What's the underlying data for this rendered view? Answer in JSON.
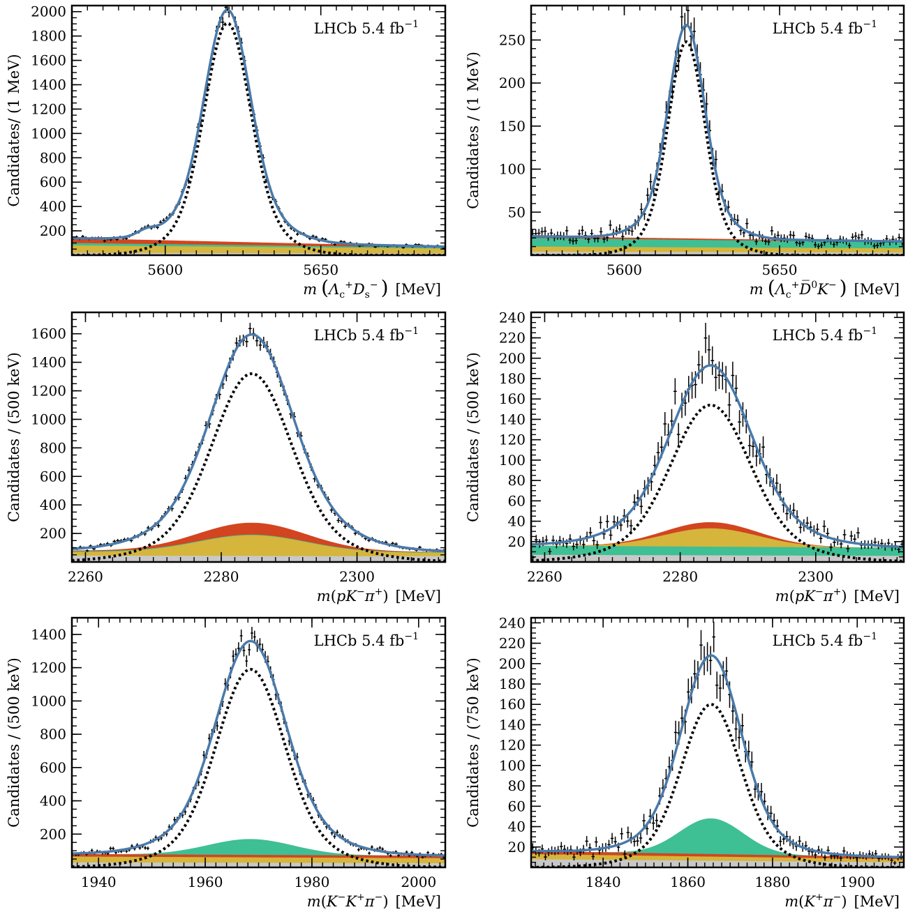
{
  "colors": {
    "total_fit": "#4a7aaa",
    "signal": "#000000",
    "bkg_red": "#d24520",
    "bkg_yellow": "#d5b53b",
    "bkg_green": "#3fbf94",
    "bkg_grey": "#c8c8c8",
    "data": "#000000"
  },
  "chart_data": [
    {
      "type": "line",
      "panel": "top-left",
      "lhcb_label": "LHCb 5.4 fb",
      "lhcb_sup": "−1",
      "ylabel": "Candidates/ (1 MeV)",
      "xlabel_prefix": "m",
      "xlabel_unit": "[MeV]",
      "xlabel_math": [
        [
          "Λ",
          ""
        ],
        [
          "c",
          "sub"
        ],
        [
          "+",
          "sup"
        ],
        [
          "D",
          ""
        ],
        [
          "s",
          "sub"
        ],
        [
          "−",
          "sup"
        ]
      ],
      "paren_style": "big",
      "xlim": [
        5570,
        5690
      ],
      "ylim": [
        0,
        2050
      ],
      "xticks": [
        5600,
        5650
      ],
      "yticks": [
        200,
        400,
        600,
        800,
        1000,
        1200,
        1400,
        1600,
        1800,
        2000
      ],
      "minor_x": 5,
      "minor_y": 50,
      "bin_width": 1,
      "peak": {
        "mean": 5620,
        "width": 7,
        "signal_amp": 1905,
        "bkg_start": 140,
        "bkg_end": 70
      },
      "bkg_layers": [
        {
          "color": "bkg_grey",
          "start": 20,
          "end": 15
        },
        {
          "color": "bkg_yellow",
          "start": 80,
          "end": 55
        },
        {
          "color": "bkg_green",
          "start": 100,
          "end": 62
        },
        {
          "color": "bkg_red",
          "start": 140,
          "end": 70
        }
      ],
      "extra_gauss": {
        "mean": 5594,
        "width": 3,
        "amp": 40
      }
    },
    {
      "type": "line",
      "panel": "top-right",
      "lhcb_label": "LHCb 5.4 fb",
      "lhcb_sup": "−1",
      "ylabel": "Candidates / (1 MeV)",
      "xlabel_prefix": "m",
      "xlabel_unit": "[MeV]",
      "xlabel_math": [
        [
          "Λ",
          ""
        ],
        [
          "c",
          "sub"
        ],
        [
          "+",
          "sup"
        ],
        [
          "D̅",
          ""
        ],
        [
          "0",
          "sup"
        ],
        [
          "K",
          ""
        ],
        [
          "−",
          "sup"
        ]
      ],
      "paren_style": "big",
      "xlim": [
        5570,
        5690
      ],
      "ylim": [
        0,
        290
      ],
      "xticks": [
        5600,
        5650
      ],
      "yticks": [
        50,
        100,
        150,
        200,
        250
      ],
      "minor_x": 5,
      "minor_y": 10,
      "bin_width": 1,
      "peak": {
        "mean": 5620,
        "width": 5.5,
        "signal_amp": 248,
        "bkg_start": 22,
        "bkg_end": 16
      },
      "bkg_layers": [
        {
          "color": "bkg_grey",
          "start": 4,
          "end": 3
        },
        {
          "color": "bkg_yellow",
          "start": 10,
          "end": 8
        },
        {
          "color": "bkg_green",
          "start": 20,
          "end": 15
        },
        {
          "color": "bkg_red",
          "start": 22,
          "end": 16
        }
      ]
    },
    {
      "type": "line",
      "panel": "middle-left",
      "lhcb_label": "LHCb 5.4 fb",
      "lhcb_sup": "−1",
      "ylabel": "Candidates / (500 keV)",
      "xlabel_prefix": "m",
      "xlabel_unit": "[MeV]",
      "xlabel_math": [
        [
          "(",
          ""
        ],
        [
          "pK",
          ""
        ],
        [
          "−",
          "sup"
        ],
        [
          "π",
          ""
        ],
        [
          "+",
          "sup"
        ],
        [
          ")",
          ""
        ]
      ],
      "paren_style": "plain",
      "xlim": [
        2258,
        2313
      ],
      "ylim": [
        0,
        1750
      ],
      "xticks": [
        2260,
        2280,
        2300
      ],
      "yticks": [
        200,
        400,
        600,
        800,
        1000,
        1200,
        1400,
        1600
      ],
      "minor_x": 2,
      "minor_y": 50,
      "bin_width": 0.5,
      "peak": {
        "mean": 2284.5,
        "width": 5.5,
        "signal_amp": 1320,
        "bkg_start": 80,
        "bkg_end": 70
      },
      "bkg_layers": [
        {
          "color": "bkg_grey",
          "start": 45,
          "end": 40,
          "peak_amp": 0,
          "peak_width": 8
        },
        {
          "color": "bkg_yellow",
          "start": 70,
          "end": 65,
          "peak_amp": 120,
          "peak_width": 8
        },
        {
          "color": "bkg_green",
          "start": 75,
          "end": 68,
          "peak_amp": 120,
          "peak_width": 8
        },
        {
          "color": "bkg_red",
          "start": 80,
          "end": 70,
          "peak_amp": 200,
          "peak_width": 8
        }
      ],
      "bkg_peak_mean": 2284.5
    },
    {
      "type": "line",
      "panel": "middle-right",
      "lhcb_label": "LHCb 5.4 fb",
      "lhcb_sup": "−1",
      "ylabel": "Candidates / (500 keV)",
      "xlabel_prefix": "m",
      "xlabel_unit": "[MeV]",
      "xlabel_math": [
        [
          "(",
          ""
        ],
        [
          "pK",
          ""
        ],
        [
          "−",
          "sup"
        ],
        [
          "π",
          ""
        ],
        [
          "+",
          "sup"
        ],
        [
          ")",
          ""
        ]
      ],
      "paren_style": "plain",
      "xlim": [
        2258,
        2313
      ],
      "ylim": [
        0,
        245
      ],
      "xticks": [
        2260,
        2280,
        2300
      ],
      "yticks": [
        20,
        40,
        60,
        80,
        100,
        120,
        140,
        160,
        180,
        200,
        220,
        240
      ],
      "minor_x": 2,
      "minor_y": 5,
      "bin_width": 0.5,
      "peak": {
        "mean": 2284.5,
        "width": 5.5,
        "signal_amp": 154,
        "bkg_start": 18,
        "bkg_end": 14
      },
      "bkg_layers": [
        {
          "color": "bkg_grey",
          "start": 7,
          "end": 6,
          "peak_amp": 0,
          "peak_width": 7
        },
        {
          "color": "bkg_green",
          "start": 16,
          "end": 14,
          "peak_amp": 0,
          "peak_width": 7
        },
        {
          "color": "bkg_yellow",
          "start": 16,
          "end": 14,
          "peak_amp": 18,
          "peak_width": 7
        },
        {
          "color": "bkg_red",
          "start": 16,
          "end": 14,
          "peak_amp": 24,
          "peak_width": 7
        }
      ],
      "bkg_peak_mean": 2284.5
    },
    {
      "type": "line",
      "panel": "bottom-left",
      "lhcb_label": "LHCb 5.4 fb",
      "lhcb_sup": "−1",
      "ylabel": "Candidates / (500 keV)",
      "xlabel_prefix": "m",
      "xlabel_unit": "[MeV]",
      "xlabel_math": [
        [
          "(",
          ""
        ],
        [
          "K",
          ""
        ],
        [
          "−",
          "sup"
        ],
        [
          "K",
          ""
        ],
        [
          "+",
          "sup"
        ],
        [
          "π",
          ""
        ],
        [
          "−",
          "sup"
        ],
        [
          ")",
          ""
        ]
      ],
      "paren_style": "plain",
      "xlim": [
        1935,
        2005
      ],
      "ylim": [
        0,
        1500
      ],
      "xticks": [
        1940,
        1960,
        1980,
        2000
      ],
      "yticks": [
        200,
        400,
        600,
        800,
        1000,
        1200,
        1400
      ],
      "minor_x": 2,
      "minor_y": 50,
      "bin_width": 0.5,
      "peak": {
        "mean": 1968.5,
        "width": 6,
        "signal_amp": 1190,
        "bkg_start": 85,
        "bkg_end": 70
      },
      "bkg_layers": [
        {
          "color": "bkg_grey",
          "start": 30,
          "end": 25,
          "peak_amp": 0,
          "peak_width": 8
        },
        {
          "color": "bkg_yellow",
          "start": 65,
          "end": 55,
          "peak_amp": 0,
          "peak_width": 8
        },
        {
          "color": "bkg_red",
          "start": 80,
          "end": 70,
          "peak_amp": 0,
          "peak_width": 8
        },
        {
          "color": "bkg_green",
          "start": 80,
          "end": 70,
          "peak_amp": 95,
          "peak_width": 8
        }
      ],
      "bkg_peak_mean": 1968.5
    },
    {
      "type": "line",
      "panel": "bottom-right",
      "lhcb_label": "LHCb 5.4 fb",
      "lhcb_sup": "−1",
      "ylabel": "Candidates / (750 keV)",
      "xlabel_prefix": "m",
      "xlabel_unit": "[MeV]",
      "xlabel_math": [
        [
          "(",
          ""
        ],
        [
          "K",
          ""
        ],
        [
          "+",
          "sup"
        ],
        [
          "π",
          ""
        ],
        [
          "−",
          "sup"
        ],
        [
          ")",
          ""
        ]
      ],
      "paren_style": "plain",
      "xlim": [
        1823,
        1911
      ],
      "ylim": [
        0,
        245
      ],
      "xticks": [
        1840,
        1860,
        1880,
        1900
      ],
      "yticks": [
        20,
        40,
        60,
        80,
        100,
        120,
        140,
        160,
        180,
        200,
        220,
        240
      ],
      "minor_x": 2,
      "minor_y": 5,
      "bin_width": 0.75,
      "peak": {
        "mean": 1865.5,
        "width": 6.5,
        "signal_amp": 160,
        "bkg_start": 18,
        "bkg_end": 10
      },
      "bkg_layers": [
        {
          "color": "bkg_grey",
          "start": 8,
          "end": 5,
          "peak_amp": 0,
          "peak_width": 7.5
        },
        {
          "color": "bkg_yellow",
          "start": 13,
          "end": 8,
          "peak_amp": 0,
          "peak_width": 7.5
        },
        {
          "color": "bkg_red",
          "start": 16,
          "end": 10,
          "peak_amp": 0,
          "peak_width": 7.5
        },
        {
          "color": "bkg_green",
          "start": 16,
          "end": 10,
          "peak_amp": 35,
          "peak_width": 7.5
        }
      ],
      "bkg_peak_mean": 1865.5
    }
  ]
}
